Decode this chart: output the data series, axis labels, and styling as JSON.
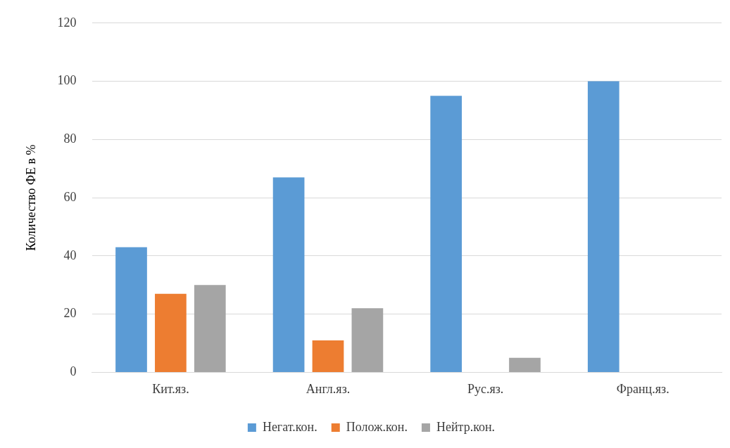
{
  "chart_data": {
    "type": "bar",
    "ylabel": "Количество ФЕ в %",
    "categories": [
      "Кит.яз.",
      "Англ.яз.",
      "Рус.яз.",
      "Франц.яз."
    ],
    "series": [
      {
        "name": "Негат.кон.",
        "color": "#5b9bd5",
        "values": [
          43,
          67,
          95,
          100
        ]
      },
      {
        "name": "Полож.кон.",
        "color": "#ed7d31",
        "values": [
          27,
          11,
          0,
          0
        ]
      },
      {
        "name": "Нейтр.кон.",
        "color": "#a5a5a5",
        "values": [
          30,
          22,
          5,
          0
        ]
      }
    ],
    "ylim": [
      0,
      120
    ],
    "yticks": [
      0,
      20,
      40,
      60,
      80,
      100,
      120
    ],
    "grid": "y",
    "legend": "bottom"
  }
}
